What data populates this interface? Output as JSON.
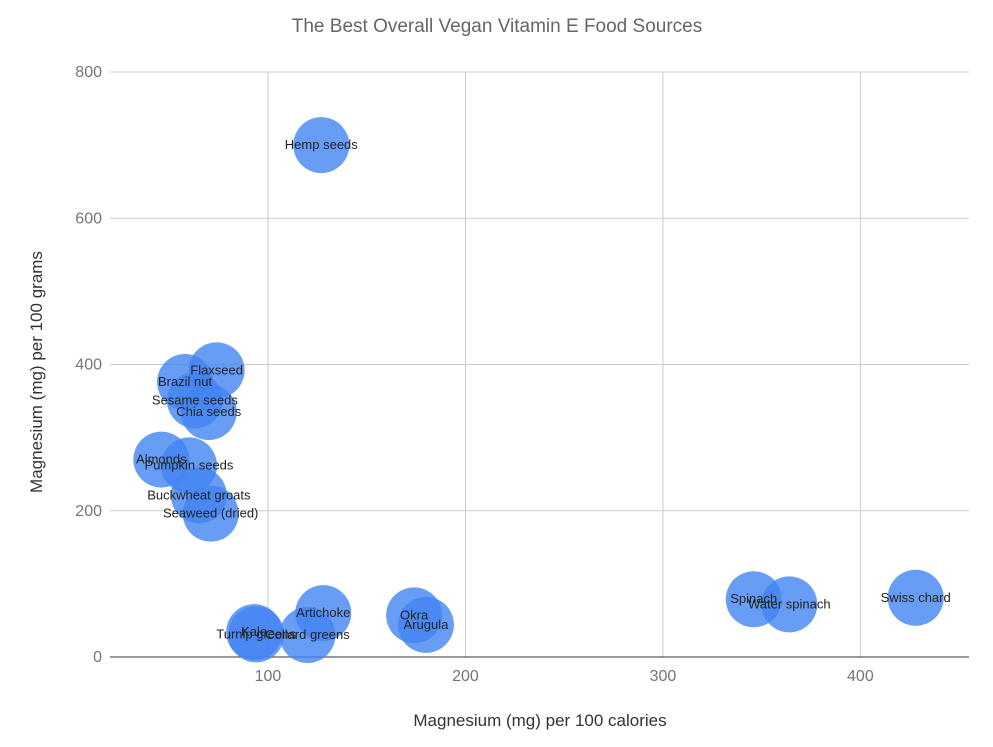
{
  "chart_data": {
    "type": "scatter",
    "title": "The Best Overall Vegan Vitamin E Food Sources",
    "xlabel": "Magnesium (mg) per 100 calories",
    "ylabel": "Magnesium (mg) per 100 grams",
    "xlim": [
      20,
      455
    ],
    "ylim": [
      0,
      800
    ],
    "xticks": [
      100,
      200,
      300,
      400
    ],
    "yticks": [
      0,
      200,
      400,
      600,
      800
    ],
    "grid": true,
    "legend": "none",
    "bubble_color": "#4285f4",
    "points": [
      {
        "label": "Hemp seeds",
        "x": 127,
        "y": 700
      },
      {
        "label": "Flaxseed",
        "x": 74,
        "y": 392
      },
      {
        "label": "Brazil nut",
        "x": 58,
        "y": 376
      },
      {
        "label": "Sesame seeds",
        "x": 63,
        "y": 351
      },
      {
        "label": "Chia seeds",
        "x": 70,
        "y": 335
      },
      {
        "label": "Almonds",
        "x": 46,
        "y": 270
      },
      {
        "label": "Pumpkin seeds",
        "x": 60,
        "y": 262
      },
      {
        "label": "Buckwheat groats",
        "x": 65,
        "y": 221
      },
      {
        "label": "Seaweed (dried)",
        "x": 71,
        "y": 196
      },
      {
        "label": "Artichoke",
        "x": 128,
        "y": 60
      },
      {
        "label": "Collard greens",
        "x": 120,
        "y": 30
      },
      {
        "label": "Kale",
        "x": 93,
        "y": 34
      },
      {
        "label": "Turnip greens",
        "x": 94,
        "y": 31
      },
      {
        "label": "Okra",
        "x": 174,
        "y": 57
      },
      {
        "label": "Arugula",
        "x": 180,
        "y": 44
      },
      {
        "label": "Spinach",
        "x": 346,
        "y": 79
      },
      {
        "label": "Water spinach",
        "x": 364,
        "y": 72
      },
      {
        "label": "Swiss chard",
        "x": 428,
        "y": 81
      }
    ]
  }
}
